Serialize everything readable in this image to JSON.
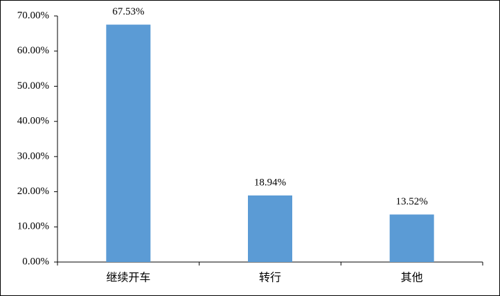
{
  "chart_data": {
    "type": "bar",
    "categories": [
      "继续开车",
      "转行",
      "其他"
    ],
    "values": [
      67.53,
      18.94,
      13.52
    ],
    "value_labels": [
      "67.53%",
      "18.94%",
      "13.52%"
    ],
    "color": "#5b9bd5",
    "ylim": [
      0,
      70
    ],
    "yticks": [
      {
        "value": 0,
        "label": "0.00%"
      },
      {
        "value": 10,
        "label": "10.00%"
      },
      {
        "value": 20,
        "label": "20.00%"
      },
      {
        "value": 30,
        "label": "30.00%"
      },
      {
        "value": 40,
        "label": "40.00%"
      },
      {
        "value": 50,
        "label": "50.00%"
      },
      {
        "value": 60,
        "label": "60.00%"
      },
      {
        "value": 70,
        "label": "70.00%"
      }
    ],
    "grid": false
  }
}
